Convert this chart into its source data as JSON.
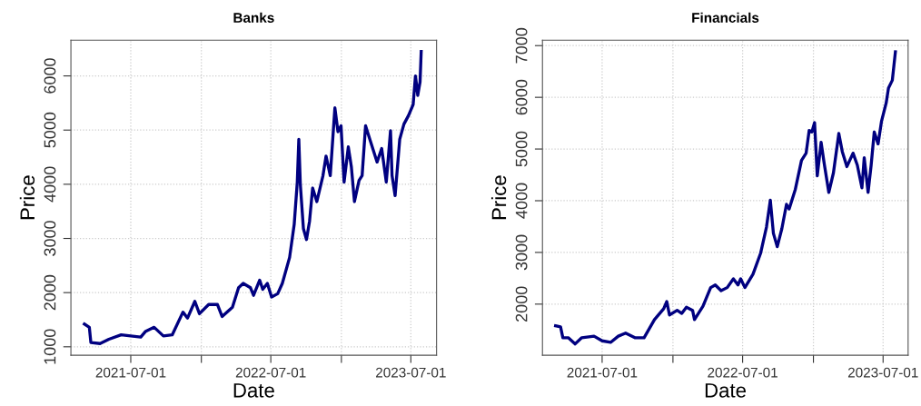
{
  "chart_data": [
    {
      "type": "line",
      "title": "Banks",
      "xlabel": "Date",
      "ylabel": "Price",
      "grid": true,
      "line_style": "solid",
      "xlim": [
        "2021-01-26",
        "2023-09-06"
      ],
      "ylim": [
        844,
        6659
      ],
      "yticks": [
        1000,
        2000,
        3000,
        4000,
        5000,
        6000
      ],
      "xticks": [
        {
          "value": "2021-07-01",
          "label": "2021-07-01"
        },
        {
          "value": "2022-01-01",
          "label": null
        },
        {
          "value": "2022-07-01",
          "label": "2022-07-01"
        },
        {
          "value": "2023-01-01",
          "label": null
        },
        {
          "value": "2023-07-01",
          "label": "2023-07-01"
        }
      ],
      "x": [
        "2021-03-02",
        "2021-03-15",
        "2021-03-19",
        "2021-04-12",
        "2021-05-05",
        "2021-06-06",
        "2021-07-01",
        "2021-07-27",
        "2021-08-08",
        "2021-08-31",
        "2021-09-24",
        "2021-10-17",
        "2021-11-14",
        "2021-11-26",
        "2021-12-15",
        "2021-12-27",
        "2022-01-20",
        "2022-02-12",
        "2022-02-24",
        "2022-03-23",
        "2022-04-08",
        "2022-04-20",
        "2022-05-09",
        "2022-05-17",
        "2022-06-02",
        "2022-06-10",
        "2022-06-22",
        "2022-07-03",
        "2022-07-19",
        "2022-07-31",
        "2022-08-19",
        "2022-08-31",
        "2022-09-08",
        "2022-09-12",
        "2022-09-16",
        "2022-09-24",
        "2022-10-02",
        "2022-10-10",
        "2022-10-18",
        "2022-10-29",
        "2022-11-14",
        "2022-11-22",
        "2022-12-03",
        "2022-12-15",
        "2022-12-23",
        "2022-12-31",
        "2023-01-08",
        "2023-01-19",
        "2023-01-27",
        "2023-02-04",
        "2023-02-16",
        "2023-02-24",
        "2023-03-05",
        "2023-03-16",
        "2023-04-04",
        "2023-04-16",
        "2023-04-28",
        "2023-05-09",
        "2023-05-13",
        "2023-05-21",
        "2023-06-02",
        "2023-06-13",
        "2023-06-25",
        "2023-07-07",
        "2023-07-13",
        "2023-07-19",
        "2023-07-25",
        "2023-07-28"
      ],
      "series": [
        {
          "color": "#000080",
          "values": [
            1420,
            1360,
            1080,
            1060,
            1140,
            1220,
            1200,
            1180,
            1280,
            1360,
            1200,
            1220,
            1640,
            1530,
            1840,
            1610,
            1780,
            1780,
            1560,
            1730,
            2090,
            2170,
            2090,
            1950,
            2230,
            2060,
            2170,
            1920,
            1980,
            2170,
            2650,
            3260,
            4040,
            4830,
            3990,
            3180,
            2980,
            3320,
            3930,
            3680,
            4160,
            4520,
            4160,
            5410,
            4970,
            5080,
            4040,
            4690,
            4320,
            3680,
            4070,
            4160,
            5080,
            4830,
            4410,
            4660,
            4040,
            4990,
            4160,
            3790,
            4830,
            5110,
            5270,
            5470,
            6000,
            5640,
            5890,
            6450
          ]
        }
      ]
    },
    {
      "type": "line",
      "title": "Financials",
      "xlabel": "Date",
      "ylabel": "Price",
      "grid": true,
      "line_style": "solid",
      "xlim": [
        "2021-01-27",
        "2023-09-04"
      ],
      "ylim": [
        1011,
        7105
      ],
      "yticks": [
        2000,
        3000,
        4000,
        5000,
        6000,
        7000
      ],
      "xticks": [
        {
          "value": "2021-07-01",
          "label": "2021-07-01"
        },
        {
          "value": "2022-01-01",
          "label": null
        },
        {
          "value": "2022-07-01",
          "label": "2022-07-01"
        },
        {
          "value": "2023-01-01",
          "label": null
        },
        {
          "value": "2023-07-01",
          "label": "2023-07-01"
        }
      ],
      "x": [
        "2021-03-02",
        "2021-03-15",
        "2021-03-21",
        "2021-04-04",
        "2021-04-22",
        "2021-05-09",
        "2021-06-10",
        "2021-07-01",
        "2021-07-23",
        "2021-08-12",
        "2021-08-31",
        "2021-09-24",
        "2021-10-18",
        "2021-11-14",
        "2021-12-08",
        "2021-12-16",
        "2021-12-23",
        "2022-01-12",
        "2022-01-24",
        "2022-02-05",
        "2022-02-21",
        "2022-02-26",
        "2022-03-20",
        "2022-04-09",
        "2022-04-21",
        "2022-05-06",
        "2022-05-22",
        "2022-06-07",
        "2022-06-19",
        "2022-06-26",
        "2022-07-07",
        "2022-07-28",
        "2022-08-17",
        "2022-09-01",
        "2022-09-11",
        "2022-09-19",
        "2022-09-29",
        "2022-10-11",
        "2022-10-23",
        "2022-10-30",
        "2022-11-15",
        "2022-12-01",
        "2022-12-13",
        "2022-12-21",
        "2022-12-28",
        "2023-01-04",
        "2023-01-11",
        "2023-01-21",
        "2023-01-29",
        "2023-02-10",
        "2023-02-22",
        "2023-03-08",
        "2023-03-17",
        "2023-03-29",
        "2023-04-14",
        "2023-04-25",
        "2023-05-07",
        "2023-05-13",
        "2023-05-23",
        "2023-05-31",
        "2023-06-08",
        "2023-06-18",
        "2023-06-27",
        "2023-07-09",
        "2023-07-15",
        "2023-07-25",
        "2023-08-02"
      ],
      "series": [
        {
          "color": "#000080",
          "values": [
            1580,
            1560,
            1350,
            1350,
            1230,
            1350,
            1380,
            1290,
            1260,
            1380,
            1440,
            1350,
            1350,
            1700,
            1910,
            2050,
            1790,
            1880,
            1820,
            1940,
            1880,
            1700,
            1960,
            2320,
            2370,
            2260,
            2320,
            2490,
            2370,
            2490,
            2320,
            2580,
            2990,
            3490,
            4010,
            3370,
            3110,
            3460,
            3930,
            3840,
            4220,
            4780,
            4920,
            5360,
            5330,
            5510,
            4480,
            5130,
            4720,
            4160,
            4540,
            5300,
            4950,
            4660,
            4920,
            4690,
            4250,
            4830,
            4160,
            4690,
            5330,
            5100,
            5540,
            5890,
            6180,
            6330,
            6880
          ]
        }
      ]
    }
  ]
}
